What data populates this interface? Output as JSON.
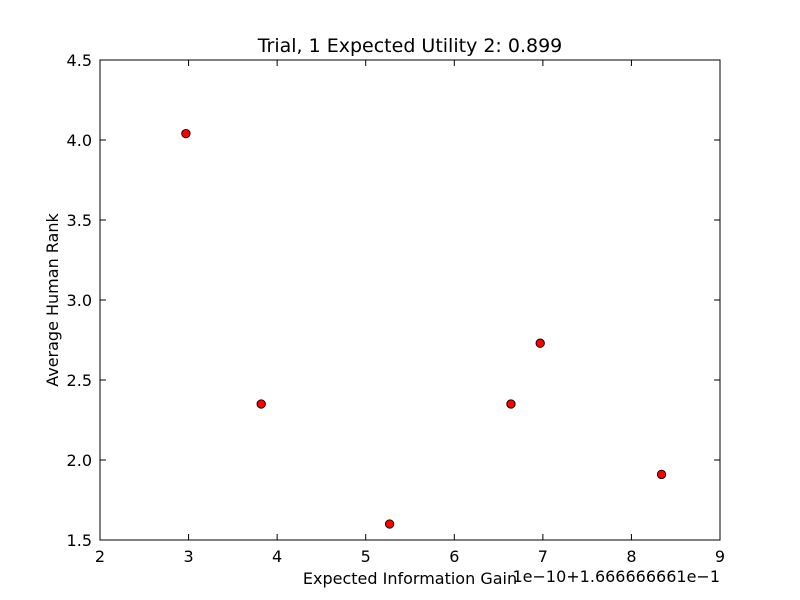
{
  "chart_data": {
    "type": "scatter",
    "title": "Trial, 1 Expected Utility 2: 0.899",
    "xlabel": "Expected Information Gain",
    "ylabel": "Average Human Rank",
    "x_offset_label": "1e−10+1.666666661e−1",
    "xlim": [
      2,
      9
    ],
    "ylim": [
      1.5,
      4.5
    ],
    "xticks": [
      "2",
      "3",
      "4",
      "5",
      "6",
      "7",
      "8",
      "9"
    ],
    "yticks": [
      "1.5",
      "2.0",
      "2.5",
      "3.0",
      "3.5",
      "4.0",
      "4.5"
    ],
    "grid": false,
    "marker_color": "#ff0000",
    "series": [
      {
        "x": [
          2.97,
          3.82,
          5.27,
          6.64,
          6.97,
          8.34
        ],
        "y": [
          4.04,
          2.35,
          1.6,
          2.35,
          2.73,
          1.91
        ]
      }
    ]
  }
}
